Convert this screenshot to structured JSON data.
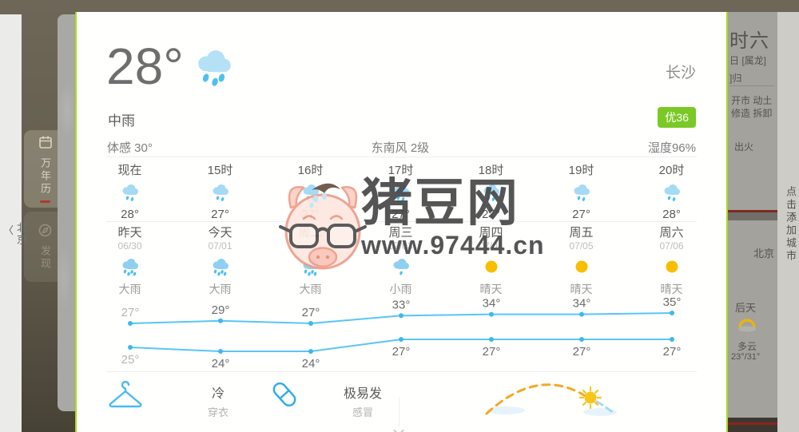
{
  "left_edge": {
    "back_chevron": "〈",
    "back_city": "北京"
  },
  "side_tabs": {
    "calendar": {
      "label": "万年历",
      "icon": "calendar"
    },
    "discover": {
      "label": "发现",
      "icon": "compass"
    }
  },
  "card": {
    "current": {
      "temp": "28°",
      "condition": "中雨",
      "city": "长沙",
      "aqi": "优36",
      "feels_like": "体感 30°",
      "wind": "东南风 2级",
      "humidity": "湿度96%",
      "icon": "rain-big"
    },
    "hourly": [
      {
        "time": "现在",
        "icon": "rain",
        "temp": "28°"
      },
      {
        "time": "15时",
        "icon": "rain",
        "temp": "27°"
      },
      {
        "time": "16时",
        "icon": "rain",
        "temp": "27°"
      },
      {
        "time": "17时",
        "icon": "rain",
        "temp": "27°"
      },
      {
        "time": "18时",
        "icon": "rain",
        "temp": "27°"
      },
      {
        "time": "19时",
        "icon": "rain",
        "temp": "27°"
      },
      {
        "time": "20时",
        "icon": "rain",
        "temp": "28°"
      }
    ],
    "daily": [
      {
        "day": "昨天",
        "date": "06/30",
        "icon": "rain-heavy",
        "cond": "大雨"
      },
      {
        "day": "今天",
        "date": "07/01",
        "icon": "rain-heavy",
        "cond": "大雨"
      },
      {
        "day": "周二",
        "date": "07/02",
        "icon": "rain-heavy",
        "cond": "大雨"
      },
      {
        "day": "周三",
        "date": "07/03",
        "icon": "rain-light",
        "cond": "小雨"
      },
      {
        "day": "周四",
        "date": "07/04",
        "icon": "sunny",
        "cond": "晴天"
      },
      {
        "day": "周五",
        "date": "07/05",
        "icon": "sunny",
        "cond": "晴天"
      },
      {
        "day": "周六",
        "date": "07/06",
        "icon": "sunny",
        "cond": "晴天"
      }
    ],
    "life": [
      {
        "icon": "hanger",
        "value": "冷",
        "label": "穿衣"
      },
      {
        "icon": "capsule",
        "value": "极易发",
        "label": "感冒"
      }
    ]
  },
  "chart_data": {
    "type": "line",
    "categories": [
      "昨天",
      "今天",
      "周二",
      "周三",
      "周四",
      "周五",
      "周六"
    ],
    "series": [
      {
        "name": "day-high",
        "values": [
          27,
          29,
          27,
          33,
          34,
          34,
          35
        ]
      },
      {
        "name": "night-low",
        "values": [
          25,
          24,
          24,
          27,
          27,
          27,
          27
        ]
      }
    ],
    "unit": "°",
    "line_color": "#5ac5f4",
    "grid": false,
    "legend": "none",
    "note": "first column (昨天) labels rendered grey"
  },
  "watermark": {
    "site_name": "猪豆网",
    "site_url": "www.97444.cn"
  },
  "right_page": {
    "lunar_big": "时六",
    "zodiac_line": "日 [属龙]",
    "line_partial": "]归",
    "yi_line1": "开市 动土",
    "yi_line2": "修造 拆卸",
    "yi_line3": "出火",
    "city_tab": "北京",
    "day_after_label": "后天",
    "day_after_cond": "多云",
    "day_after_range": "23°/31°"
  },
  "right_rail": {
    "add_city": "点击添加城市",
    "chevron": "›"
  },
  "colors": {
    "aqi_badge": "#7bc926",
    "chart_line": "#5ac5f4",
    "edge_highlight": "#a8da1e",
    "sun": "#f9be01"
  }
}
